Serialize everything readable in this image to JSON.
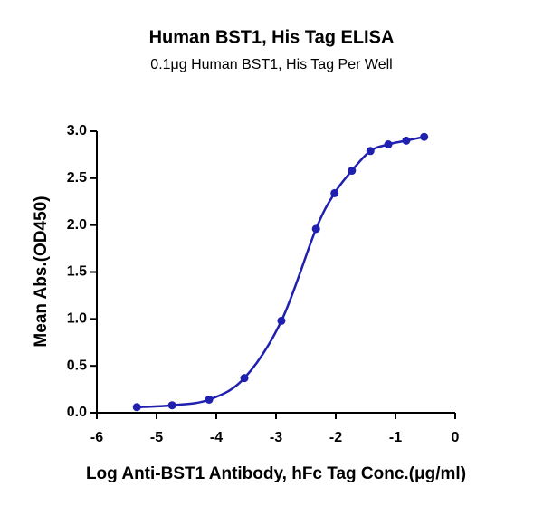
{
  "chart_data": {
    "type": "scatter",
    "title": "Human BST1, His Tag ELISA",
    "subtitle": "0.1μg Human BST1, His Tag Per Well",
    "x_label": "Log Anti-BST1 Antibody, hFc Tag Conc.(μg/ml)",
    "y_label": "Mean Abs.(OD450)",
    "series": [
      {
        "color": "#1f1fb0",
        "line": true,
        "x": [
          -5.33,
          -4.74,
          -4.12,
          -3.53,
          -2.91,
          -2.33,
          -2.02,
          -1.73,
          -1.42,
          -1.12,
          -0.82,
          -0.52
        ],
        "values": [
          0.06,
          0.08,
          0.14,
          0.37,
          0.98,
          1.96,
          2.34,
          2.58,
          2.79,
          2.86,
          2.9,
          2.94
        ]
      }
    ],
    "xlim": [
      -6,
      0
    ],
    "xticks": [
      -6,
      -5,
      -4,
      -3,
      -2,
      -1,
      0
    ],
    "ylim": [
      0,
      3
    ],
    "yticks": [
      {
        "value": 0,
        "label": "0.0"
      },
      0.5,
      {
        "value": 1,
        "label": "1.0"
      },
      1.5,
      {
        "value": 2,
        "label": "2.0"
      },
      2.5,
      {
        "value": 3,
        "label": "3.0"
      }
    ],
    "grid": false
  }
}
